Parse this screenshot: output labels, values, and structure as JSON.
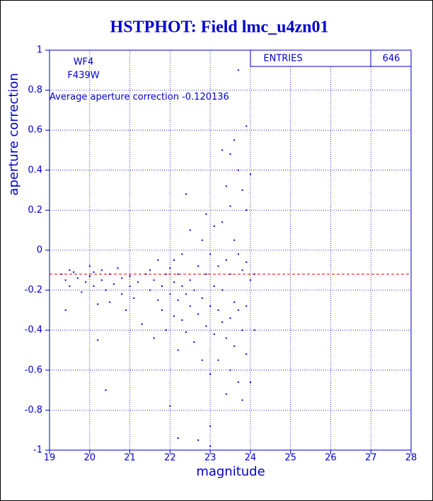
{
  "chart_data": {
    "type": "scatter",
    "title": "HSTPHOT: Field lmc_u4zn01",
    "xlabel": "magnitude",
    "ylabel": "aperture correction",
    "xlim": [
      19,
      28
    ],
    "ylim": [
      -1,
      1
    ],
    "xticks": [
      19,
      20,
      21,
      22,
      23,
      24,
      25,
      26,
      27,
      28
    ],
    "yticks": [
      -1,
      -0.8,
      -0.6,
      -0.4,
      -0.2,
      0,
      0.2,
      0.4,
      0.6,
      0.8,
      1
    ],
    "grid": true,
    "color": "#0000cc",
    "annotations": [
      "WF4",
      "F439W"
    ],
    "average_label": "Average aperture correction",
    "average": -0.120136,
    "average_color": "#e00000",
    "stats": {
      "label": "ENTRIES",
      "value": 646
    },
    "x": [
      19.3,
      19.4,
      19.4,
      19.5,
      19.5,
      19.6,
      19.7,
      19.8,
      19.9,
      20.0,
      20.0,
      20.1,
      20.1,
      20.2,
      20.2,
      20.3,
      20.3,
      20.4,
      20.4,
      20.5,
      20.5,
      20.6,
      20.7,
      20.8,
      20.8,
      20.9,
      21.0,
      21.0,
      21.1,
      21.2,
      21.3,
      21.4,
      21.5,
      21.5,
      21.6,
      21.6,
      21.7,
      21.7,
      21.8,
      21.8,
      21.9,
      21.9,
      22.0,
      22.0,
      22.0,
      22.1,
      22.1,
      22.1,
      22.2,
      22.2,
      22.2,
      22.3,
      22.3,
      22.3,
      22.4,
      22.4,
      22.4,
      22.5,
      22.5,
      22.5,
      22.6,
      22.6,
      22.7,
      22.7,
      22.7,
      22.8,
      22.8,
      22.8,
      22.9,
      22.9,
      22.9,
      23.0,
      23.0,
      23.0,
      23.0,
      23.1,
      23.1,
      23.1,
      23.2,
      23.2,
      23.2,
      23.3,
      23.3,
      23.3,
      23.3,
      23.4,
      23.4,
      23.4,
      23.4,
      23.5,
      23.5,
      23.5,
      23.5,
      23.5,
      23.6,
      23.6,
      23.6,
      23.6,
      23.7,
      23.7,
      23.7,
      23.7,
      23.7,
      23.8,
      23.8,
      23.8,
      23.8,
      23.9,
      23.9,
      23.9,
      23.9,
      23.9,
      24.0,
      24.0,
      24.0,
      24.1,
      24.1,
      22.2,
      23.0
    ],
    "values": [
      -0.12,
      -0.15,
      -0.3,
      -0.1,
      -0.18,
      -0.11,
      -0.14,
      -0.21,
      -0.16,
      -0.08,
      -0.13,
      -0.18,
      -0.11,
      -0.45,
      -0.27,
      -0.15,
      -0.1,
      -0.2,
      -0.7,
      -0.12,
      -0.26,
      -0.17,
      -0.09,
      -0.22,
      -0.14,
      -0.3,
      -0.13,
      -0.18,
      -0.24,
      -0.16,
      -0.37,
      -0.12,
      -0.2,
      -0.1,
      -0.15,
      -0.44,
      -0.05,
      -0.25,
      -0.18,
      -0.3,
      -0.12,
      -0.4,
      -0.22,
      -0.09,
      -0.78,
      -0.16,
      -0.33,
      -0.05,
      -0.25,
      -0.12,
      -0.5,
      -0.18,
      -0.02,
      -0.35,
      0.28,
      -0.22,
      -0.41,
      -0.15,
      -0.28,
      0.1,
      -0.2,
      -0.46,
      -0.08,
      -0.32,
      -0.95,
      0.05,
      -0.24,
      -0.55,
      -0.12,
      -0.38,
      0.18,
      -0.02,
      -0.28,
      -0.62,
      -0.88,
      -0.18,
      -0.42,
      0.12,
      -0.08,
      -0.3,
      -0.55,
      0.5,
      0.14,
      -0.2,
      -0.36,
      0.32,
      -0.05,
      -0.44,
      -0.72,
      0.48,
      0.22,
      -0.12,
      -0.34,
      -0.6,
      0.55,
      0.05,
      -0.26,
      -0.48,
      0.9,
      0.4,
      -0.02,
      -0.3,
      -0.66,
      0.3,
      -0.1,
      -0.4,
      -0.75,
      0.62,
      0.2,
      -0.06,
      -0.28,
      -0.52,
      0.38,
      -0.15,
      -0.66,
      -0.12,
      -0.4,
      -0.94,
      -0.98
    ]
  }
}
